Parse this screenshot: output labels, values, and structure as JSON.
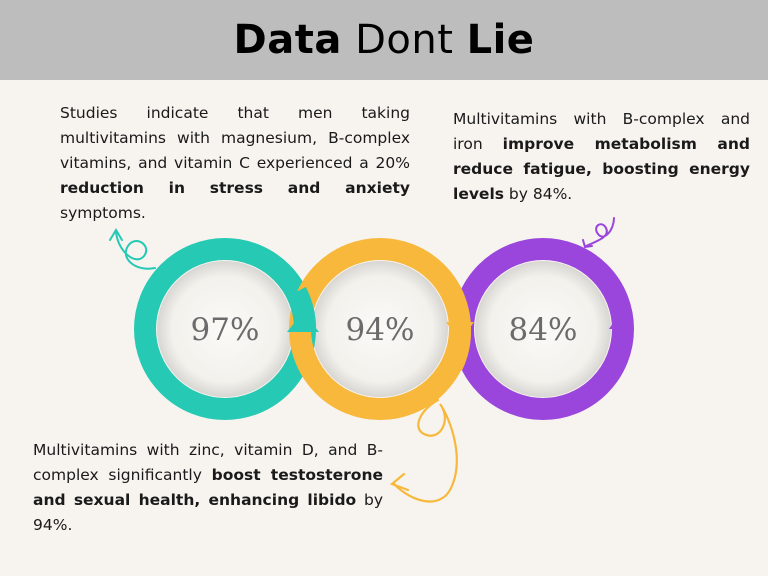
{
  "title": {
    "part1": "Data",
    "part2": " Dont ",
    "part3": "Lie"
  },
  "stats": [
    {
      "value": "97%",
      "color": "#26c9b3"
    },
    {
      "value": "94%",
      "color": "#f7b83c"
    },
    {
      "value": "84%",
      "color": "#9a45db"
    }
  ],
  "paragraphs": {
    "stress": {
      "text1": "Studies indicate that men taking multivitamins with magnesium, B-complex vitamins, and vitamin C experienced a 20% ",
      "bold": "reduction in stress and anxiety",
      "text2": " symptoms."
    },
    "energy": {
      "text1": "Multivitamins with B-complex and iron ",
      "bold": "improve metabolism and reduce fatigue, boosting energy levels",
      "text2": " by 84%."
    },
    "testosterone": {
      "text1": "Multivitamins with zinc, vitamin D, and B-complex significantly ",
      "bold": "boost testosterone and sexual health, enhancing libido",
      "text2": " by 94%."
    }
  },
  "colors": {
    "teal": "#26c9b3",
    "orange": "#f7b83c",
    "purple": "#9a45db",
    "header": "#bdbdbd",
    "background": "#f7f4ef"
  }
}
